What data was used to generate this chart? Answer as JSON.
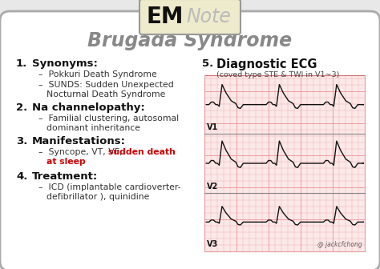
{
  "bg_color": "#e8e8e8",
  "card_bg": "#ffffff",
  "border_color": "#aaaaaa",
  "title": "Brugada Syndrome",
  "title_color": "#888888",
  "logo_em": "EM",
  "logo_note": "Note",
  "logo_em_color": "#111111",
  "logo_note_color": "#bbbbbb",
  "logo_box_bg": "#eeeacc",
  "logo_box_border": "#999999",
  "sections": [
    {
      "num": "1.",
      "heading": "Synonyms:",
      "items": [
        "–  Pokkuri Death Syndrome",
        "–  SUNDS: Sudden Unexpected\n    Nocturnal Death Syndrome"
      ]
    },
    {
      "num": "2.",
      "heading": "Na channelopathy:",
      "items": [
        "–  Familial clustering, autosomal\n    dominant inheritance"
      ]
    },
    {
      "num": "3.",
      "heading": "Manifestations:",
      "items": [],
      "mixed_line1_normal": "–  Syncope, VT, VF, ",
      "mixed_line1_red": "sudden death",
      "mixed_line2_red": "at sleep"
    },
    {
      "num": "4.",
      "heading": "Treatment:",
      "items": [
        "–  ICD (implantable cardioverter-\n    defibrillator ), quinidine"
      ]
    }
  ],
  "right_heading_num": "5.",
  "right_heading": "Diagnostic ECG",
  "right_subheading": "(coved type STE & TWI in V1~3)",
  "ecg_labels": [
    "V1",
    "V2",
    "V3"
  ],
  "credit": "@ jackcfchong",
  "ecg_bg": "#fce8e8",
  "ecg_grid_color": "#e8a0a0",
  "ecg_grid_bold": "#d07070",
  "ecg_line_color": "#111111",
  "red_text_color": "#cc0000"
}
